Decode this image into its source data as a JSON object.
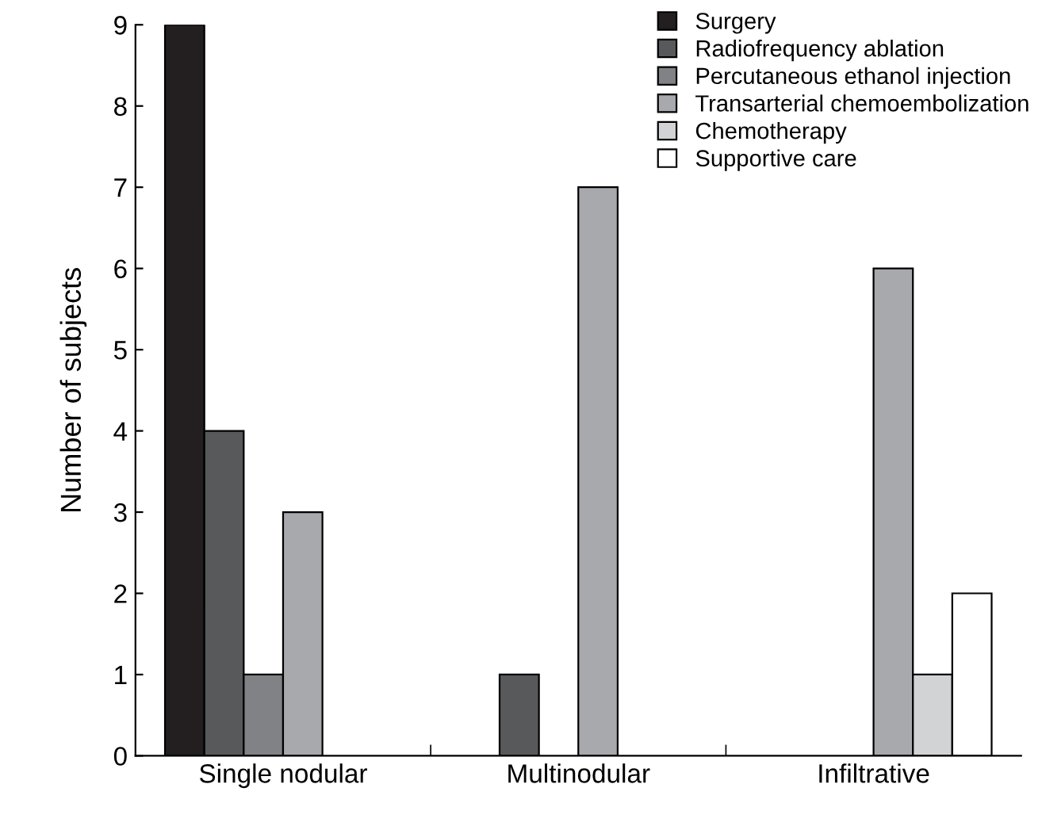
{
  "chart_data": {
    "type": "bar",
    "ylabel": "Number of subjects",
    "categories": [
      "Single nodular",
      "Multinodular",
      "Infiltrative"
    ],
    "series": [
      {
        "name": "Surgery",
        "color": "#231f20",
        "values": [
          9,
          0,
          0
        ]
      },
      {
        "name": "Radiofrequency ablation",
        "color": "#58595b",
        "values": [
          4,
          1,
          0
        ]
      },
      {
        "name": "Percutaneous ethanol injection",
        "color": "#808285",
        "values": [
          1,
          0,
          0
        ]
      },
      {
        "name": "Transarterial chemoembolization",
        "color": "#a7a9ac",
        "values": [
          3,
          7,
          6
        ]
      },
      {
        "name": "Chemotherapy",
        "color": "#d1d3d4",
        "values": [
          0,
          0,
          1
        ]
      },
      {
        "name": "Supportive care",
        "color": "#ffffff",
        "values": [
          0,
          0,
          2
        ]
      }
    ],
    "ylim": [
      0,
      9
    ],
    "yticks": [
      0,
      1,
      2,
      3,
      4,
      5,
      6,
      7,
      8,
      9
    ],
    "grid": false,
    "legend": "top right"
  }
}
